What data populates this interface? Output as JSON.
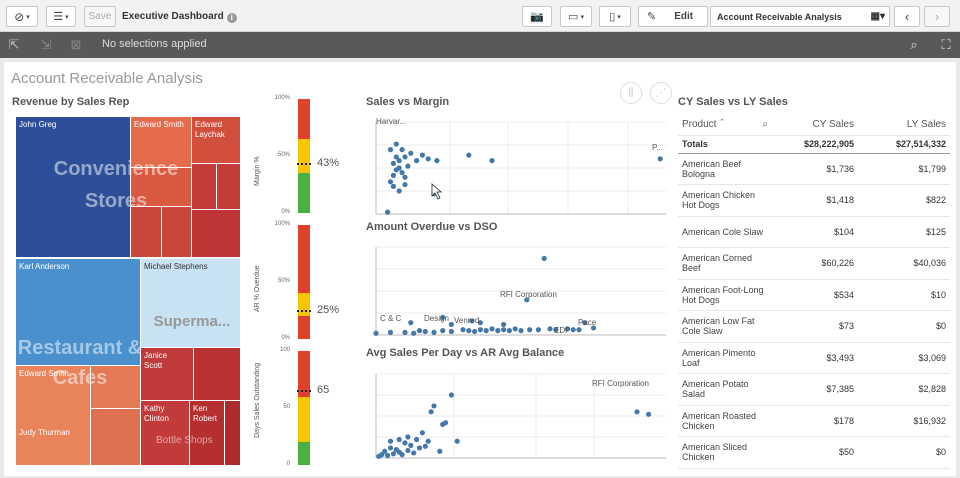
{
  "toolbar": {
    "nav_icon": "compass-icon",
    "list_icon": "list-icon",
    "save_label": "Save",
    "app_title": "Executive Dashboard",
    "camera_icon": "camera-icon",
    "present_icon": "presentation-icon",
    "bookmark_icon": "bookmark-icon",
    "edit_label": "Edit",
    "sheet_name": "Account Receivable Analysis",
    "prev_icon": "chevron-left-icon",
    "next_icon": "chevron-right-icon"
  },
  "selections": {
    "text": "No selections applied"
  },
  "sheet": {
    "title": "Account Receivable Analysis"
  },
  "treemap": {
    "title": "Revenue by Sales Rep",
    "big_labels": [
      "Convenience Stores",
      "Supermа...",
      "Restaurant & Cafes",
      "Bottle Shops"
    ],
    "reps": [
      "John Greg",
      "Edward Smith",
      "Edward Laychak",
      "Karl Anderson",
      "Michael Stephens",
      "Edward Smith",
      "Janice Scott",
      "Judy Thurman",
      "Kathy Clinton",
      "Ken Robert"
    ]
  },
  "gauges": [
    {
      "axis": "Margin %",
      "ticks": [
        "100%",
        "50%",
        "0%"
      ],
      "value": "43%",
      "level": 0.43
    },
    {
      "axis": "AR % Overdue",
      "ticks": [
        "100%",
        "50%",
        "0%"
      ],
      "value": "25%",
      "level": 0.25
    },
    {
      "axis": "Days Sales Outstanding",
      "ticks": [
        "100",
        "50",
        "0"
      ],
      "value": "65",
      "level": 0.65
    }
  ],
  "chart_data": [
    {
      "type": "scatter",
      "title": "Sales vs Margin",
      "annotations": [
        "Harvar...",
        "P..."
      ],
      "points": [
        [
          0.04,
          0.02
        ],
        [
          0.05,
          0.35
        ],
        [
          0.06,
          0.42
        ],
        [
          0.06,
          0.55
        ],
        [
          0.07,
          0.48
        ],
        [
          0.07,
          0.62
        ],
        [
          0.08,
          0.5
        ],
        [
          0.08,
          0.58
        ],
        [
          0.09,
          0.45
        ],
        [
          0.1,
          0.62
        ],
        [
          0.11,
          0.52
        ],
        [
          0.12,
          0.66
        ],
        [
          0.14,
          0.58
        ],
        [
          0.16,
          0.64
        ],
        [
          0.18,
          0.6
        ],
        [
          0.2,
          0.22
        ],
        [
          0.21,
          0.58
        ],
        [
          0.05,
          0.7
        ],
        [
          0.06,
          0.3
        ],
        [
          0.07,
          0.76
        ],
        [
          0.08,
          0.25
        ],
        [
          0.09,
          0.7
        ],
        [
          0.1,
          0.32
        ],
        [
          0.32,
          0.64
        ],
        [
          0.4,
          0.58
        ],
        [
          0.98,
          0.6
        ],
        [
          0.1,
          0.4
        ]
      ]
    },
    {
      "type": "scatter",
      "title": "Amount Overdue vs DSO",
      "annotations": [
        "RFI Corporation",
        "C & C",
        "Design",
        "Venred",
        "EDP",
        "Pace"
      ],
      "points": [
        [
          0.0,
          0.02
        ],
        [
          0.05,
          0.03
        ],
        [
          0.1,
          0.03
        ],
        [
          0.13,
          0.02
        ],
        [
          0.15,
          0.05
        ],
        [
          0.17,
          0.04
        ],
        [
          0.2,
          0.03
        ],
        [
          0.23,
          0.05
        ],
        [
          0.26,
          0.04
        ],
        [
          0.3,
          0.06
        ],
        [
          0.32,
          0.05
        ],
        [
          0.34,
          0.04
        ],
        [
          0.36,
          0.06
        ],
        [
          0.38,
          0.05
        ],
        [
          0.4,
          0.07
        ],
        [
          0.42,
          0.05
        ],
        [
          0.44,
          0.06
        ],
        [
          0.46,
          0.05
        ],
        [
          0.48,
          0.07
        ],
        [
          0.5,
          0.05
        ],
        [
          0.53,
          0.06
        ],
        [
          0.56,
          0.06
        ],
        [
          0.6,
          0.07
        ],
        [
          0.62,
          0.06
        ],
        [
          0.66,
          0.07
        ],
        [
          0.68,
          0.06
        ],
        [
          0.12,
          0.14
        ],
        [
          0.26,
          0.12
        ],
        [
          0.33,
          0.16
        ],
        [
          0.36,
          0.14
        ],
        [
          0.23,
          0.2
        ],
        [
          0.52,
          0.4
        ],
        [
          0.58,
          0.87
        ],
        [
          0.44,
          0.12
        ],
        [
          0.7,
          0.06
        ],
        [
          0.72,
          0.14
        ],
        [
          0.75,
          0.08
        ]
      ]
    },
    {
      "type": "scatter",
      "title": "Avg Sales Per Day vs AR Avg Balance",
      "annotations": [
        "RFI Corporation"
      ],
      "points": [
        [
          0.01,
          0.02
        ],
        [
          0.02,
          0.04
        ],
        [
          0.03,
          0.08
        ],
        [
          0.04,
          0.03
        ],
        [
          0.05,
          0.12
        ],
        [
          0.06,
          0.05
        ],
        [
          0.07,
          0.1
        ],
        [
          0.08,
          0.07
        ],
        [
          0.09,
          0.04
        ],
        [
          0.1,
          0.18
        ],
        [
          0.11,
          0.09
        ],
        [
          0.12,
          0.15
        ],
        [
          0.13,
          0.06
        ],
        [
          0.14,
          0.22
        ],
        [
          0.15,
          0.12
        ],
        [
          0.16,
          0.3
        ],
        [
          0.17,
          0.14
        ],
        [
          0.18,
          0.2
        ],
        [
          0.19,
          0.55
        ],
        [
          0.2,
          0.62
        ],
        [
          0.22,
          0.08
        ],
        [
          0.23,
          0.4
        ],
        [
          0.24,
          0.42
        ],
        [
          0.26,
          0.75
        ],
        [
          0.28,
          0.2
        ],
        [
          0.9,
          0.55
        ],
        [
          0.94,
          0.52
        ],
        [
          0.05,
          0.2
        ],
        [
          0.08,
          0.22
        ],
        [
          0.11,
          0.25
        ]
      ]
    }
  ],
  "table": {
    "title": "CY Sales vs LY Sales",
    "headers": [
      "Product",
      "CY Sales",
      "LY Sales"
    ],
    "totals": [
      "Totals",
      "$28,222,905",
      "$27,514,332"
    ],
    "rows": [
      [
        "American Beef Bologna",
        "$1,736",
        "$1,799"
      ],
      [
        "American Chicken Hot Dogs",
        "$1,418",
        "$822"
      ],
      [
        "American Cole Slaw",
        "$104",
        "$125"
      ],
      [
        "American Corned Beef",
        "$60,226",
        "$40,036"
      ],
      [
        "American Foot-Long Hot Dogs",
        "$534",
        "$10"
      ],
      [
        "American Low Fat Cole Slaw",
        "$73",
        "$0"
      ],
      [
        "American Pimento Loaf",
        "$3,493",
        "$3,069"
      ],
      [
        "American Potato Salad",
        "$7,385",
        "$2,828"
      ],
      [
        "American Roasted Chicken",
        "$178",
        "$16,932"
      ],
      [
        "American Sliced Chicken",
        "$50",
        "$0"
      ]
    ]
  }
}
